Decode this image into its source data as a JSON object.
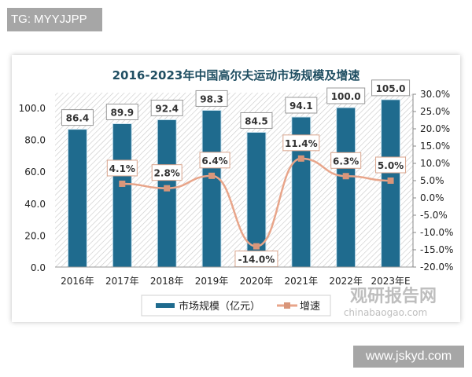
{
  "watermark_top": "TG: MYYJJPP",
  "watermark_bottom": "www.jskyd.com",
  "source_logo": {
    "cn": "观研报告网",
    "en": "chinabaogao.com"
  },
  "colors": {
    "bar": "#1f6b8e",
    "line": "#e8a58a",
    "marker": "#d9967a",
    "title": "#1f4e62"
  },
  "chart_data": {
    "type": "bar",
    "title": "2016-2023年中国高尔夫运动市场规模及增速",
    "categories": [
      "2016年",
      "2017年",
      "2018年",
      "2019年",
      "2020年",
      "2021年",
      "2022年",
      "2023年E"
    ],
    "series": [
      {
        "name": "市场规模（亿元）",
        "type": "bar",
        "axis": "left",
        "values": [
          86.4,
          89.9,
          92.4,
          98.3,
          84.5,
          94.1,
          100.0,
          105.0
        ]
      },
      {
        "name": "增速",
        "type": "line",
        "axis": "right",
        "values": [
          null,
          4.1,
          2.8,
          6.4,
          -14.0,
          11.4,
          6.3,
          5.0
        ],
        "unit": "%"
      }
    ],
    "left_axis": {
      "ticks": [
        "0.0",
        "20.0",
        "40.0",
        "60.0",
        "80.0",
        "100.0"
      ],
      "range": [
        0,
        108
      ]
    },
    "right_axis": {
      "ticks": [
        "-20.0%",
        "-15.0%",
        "-10.0%",
        "-5.0%",
        "0.0%",
        "5.0%",
        "10.0%",
        "15.0%",
        "20.0%",
        "25.0%",
        "30.0%"
      ],
      "range": [
        -20,
        30
      ]
    },
    "bar_labels": [
      "86.4",
      "89.9",
      "92.4",
      "98.3",
      "84.5",
      "94.1",
      "100.0",
      "105.0"
    ],
    "line_labels": [
      "",
      "4.1%",
      "2.8%",
      "6.4%",
      "-14.0%",
      "11.4%",
      "6.3%",
      "5.0%"
    ],
    "legend": [
      "市场规模（亿元）",
      "增速"
    ],
    "legend_position": "bottom",
    "grid": false
  }
}
